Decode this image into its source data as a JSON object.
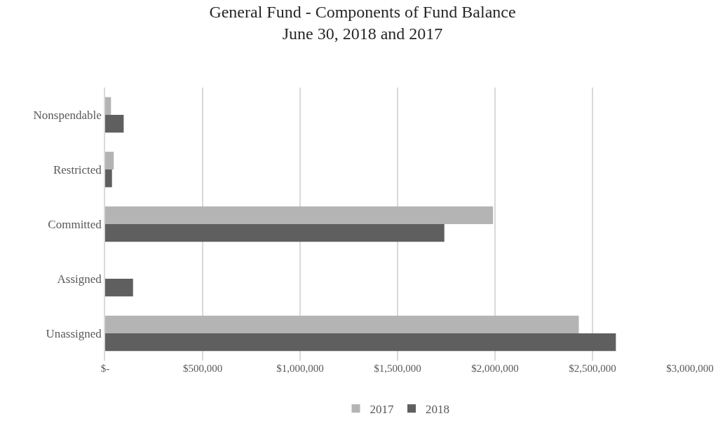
{
  "chart_data": {
    "type": "bar",
    "orientation": "horizontal",
    "title": "General Fund - Components of Fund Balance\nJune 30, 2018 and 2017",
    "categories": [
      "Nonspendable",
      "Restricted",
      "Committed",
      "Assigned",
      "Unassigned"
    ],
    "series": [
      {
        "name": "2017",
        "color": "#b4b4b4",
        "values": [
          30000,
          44000,
          1990000,
          null,
          2430000
        ]
      },
      {
        "name": "2018",
        "color": "#5f5f5f",
        "values": [
          95000,
          35000,
          1740000,
          143000,
          2620000
        ]
      }
    ],
    "xlim": [
      0,
      3000000
    ],
    "xticks": [
      {
        "value": 0,
        "label": "$-"
      },
      {
        "value": 500000,
        "label": "$500,000"
      },
      {
        "value": 1000000,
        "label": "$1,000,000"
      },
      {
        "value": 1500000,
        "label": "$1,500,000"
      },
      {
        "value": 2000000,
        "label": "$2,000,000"
      },
      {
        "value": 2500000,
        "label": "$2,500,000"
      },
      {
        "value": 3000000,
        "label": "$3,000,000"
      }
    ],
    "grid": "x",
    "legend": "bottom"
  }
}
